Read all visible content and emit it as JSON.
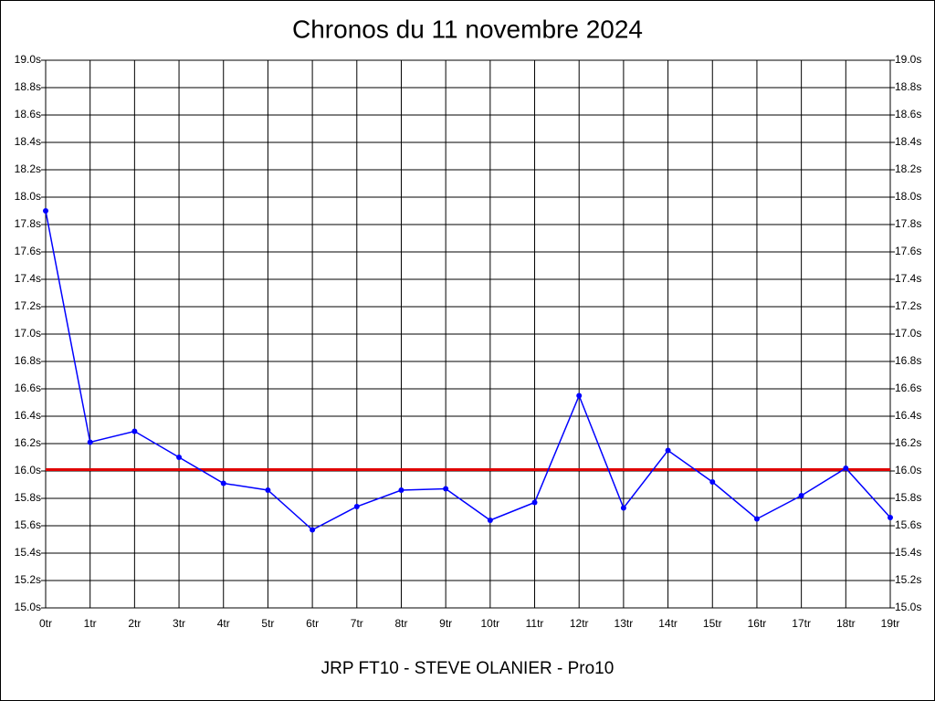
{
  "chart_data": {
    "type": "line",
    "title": "Chronos du 11 novembre 2024",
    "caption": "JRP FT10 - STEVE OLANIER - Pro10",
    "categories": [
      "0tr",
      "1tr",
      "2tr",
      "3tr",
      "4tr",
      "5tr",
      "6tr",
      "7tr",
      "8tr",
      "9tr",
      "10tr",
      "11tr",
      "12tr",
      "13tr",
      "14tr",
      "15tr",
      "16tr",
      "17tr",
      "18tr",
      "19tr"
    ],
    "series": [
      {
        "color": "#0000ff",
        "values": [
          17.9,
          16.21,
          16.29,
          16.1,
          15.91,
          15.86,
          15.57,
          15.74,
          15.86,
          15.87,
          15.64,
          15.77,
          16.55,
          15.73,
          16.15,
          15.92,
          15.65,
          15.82,
          16.02,
          15.66
        ]
      }
    ],
    "reference_line": {
      "value": 16.01,
      "color": "#e00000"
    },
    "ylim": [
      15.0,
      19.0
    ],
    "yticks": [
      {
        "value": 15.0,
        "label": "15.0s"
      },
      {
        "value": 15.2,
        "label": "15.2s"
      },
      {
        "value": 15.4,
        "label": "15.4s"
      },
      {
        "value": 15.6,
        "label": "15.6s"
      },
      {
        "value": 15.8,
        "label": "15.8s"
      },
      {
        "value": 16.0,
        "label": "16.0s"
      },
      {
        "value": 16.2,
        "label": "16.2s"
      },
      {
        "value": 16.4,
        "label": "16.4s"
      },
      {
        "value": 16.6,
        "label": "16.6s"
      },
      {
        "value": 16.8,
        "label": "16.8s"
      },
      {
        "value": 17.0,
        "label": "17.0s"
      },
      {
        "value": 17.2,
        "label": "17.2s"
      },
      {
        "value": 17.4,
        "label": "17.4s"
      },
      {
        "value": 17.6,
        "label": "17.6s"
      },
      {
        "value": 17.8,
        "label": "17.8s"
      },
      {
        "value": 18.0,
        "label": "18.0s"
      },
      {
        "value": 18.2,
        "label": "18.2s"
      },
      {
        "value": 18.4,
        "label": "18.4s"
      },
      {
        "value": 18.6,
        "label": "18.6s"
      },
      {
        "value": 18.8,
        "label": "18.8s"
      },
      {
        "value": 19.0,
        "label": "19.0s"
      }
    ],
    "grid": true,
    "right_axis": true
  }
}
